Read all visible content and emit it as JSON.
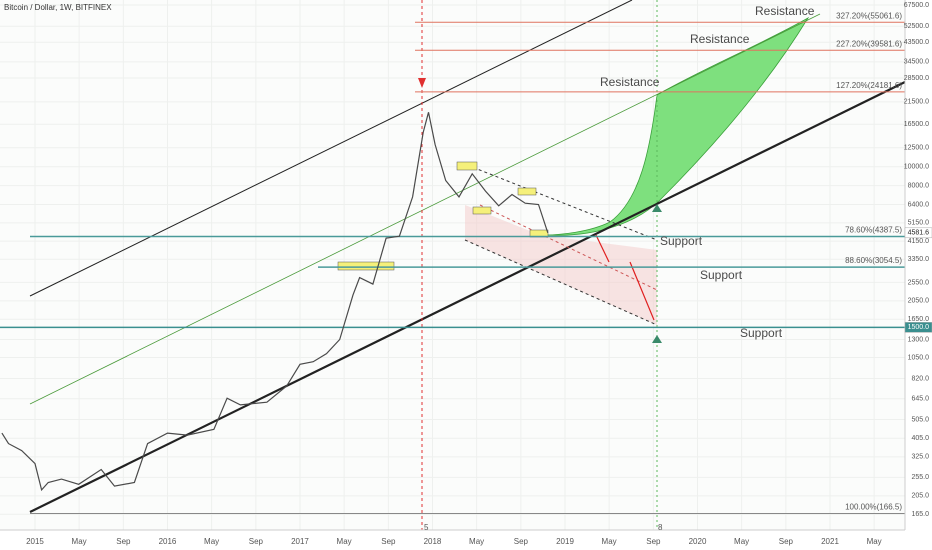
{
  "chart_data": {
    "type": "line",
    "title": "Bitcoin / Dollar, 1W, BITFINEX",
    "log_scale": true,
    "grid": true,
    "color": "#4a4a4a",
    "x": [
      2014.75,
      2014.8,
      2014.9,
      2015.0,
      2015.05,
      2015.1,
      2015.2,
      2015.33,
      2015.5,
      2015.6,
      2015.75,
      2015.85,
      2016.0,
      2016.15,
      2016.35,
      2016.45,
      2016.55,
      2016.75,
      2016.9,
      2017.0,
      2017.1,
      2017.2,
      2017.3,
      2017.4,
      2017.45,
      2017.55,
      2017.65,
      2017.75,
      2017.85,
      2017.93,
      2017.97,
      2018.02,
      2018.1,
      2018.2,
      2018.3,
      2018.4,
      2018.5,
      2018.6,
      2018.7,
      2018.8,
      2018.87
    ],
    "values": [
      430,
      380,
      350,
      300,
      220,
      240,
      250,
      235,
      280,
      230,
      240,
      380,
      430,
      420,
      450,
      650,
      600,
      620,
      750,
      970,
      1000,
      1100,
      1300,
      2200,
      2700,
      2500,
      4300,
      4400,
      7000,
      15000,
      19000,
      13000,
      8500,
      7000,
      9200,
      7500,
      6300,
      7200,
      6500,
      6400,
      4581.6
    ],
    "xlim": [
      2014.736,
      2021.566
    ],
    "xticks": [
      {
        "value": 2015.0,
        "label": "2015"
      },
      {
        "value": 2015.333,
        "label": "May"
      },
      {
        "value": 2015.667,
        "label": "Sep"
      },
      {
        "value": 2016.0,
        "label": "2016"
      },
      {
        "value": 2016.333,
        "label": "May"
      },
      {
        "value": 2016.667,
        "label": "Sep"
      },
      {
        "value": 2017.0,
        "label": "2017"
      },
      {
        "value": 2017.333,
        "label": "May"
      },
      {
        "value": 2017.667,
        "label": "Sep"
      },
      {
        "value": 2018.0,
        "label": "2018"
      },
      {
        "value": 2018.333,
        "label": "May"
      },
      {
        "value": 2018.667,
        "label": "Sep"
      },
      {
        "value": 2019.0,
        "label": "2019"
      },
      {
        "value": 2019.333,
        "label": "May"
      },
      {
        "value": 2019.667,
        "label": "Sep"
      },
      {
        "value": 2020.0,
        "label": "2020"
      },
      {
        "value": 2020.333,
        "label": "May"
      },
      {
        "value": 2020.667,
        "label": "Sep"
      },
      {
        "value": 2021.0,
        "label": "2021"
      },
      {
        "value": 2021.333,
        "label": "May"
      }
    ],
    "ylim": [
      137,
      71600
    ],
    "yticks": [
      {
        "value": 67500,
        "label": "67500.0"
      },
      {
        "value": 52500,
        "label": "52500.0"
      },
      {
        "value": 43500,
        "label": "43500.0"
      },
      {
        "value": 34500,
        "label": "34500.0"
      },
      {
        "value": 28500,
        "label": "28500.0"
      },
      {
        "value": 21500,
        "label": "21500.0"
      },
      {
        "value": 16500,
        "label": "16500.0"
      },
      {
        "value": 12500,
        "label": "12500.0"
      },
      {
        "value": 10000,
        "label": "10000.0"
      },
      {
        "value": 8000,
        "label": "8000.0"
      },
      {
        "value": 6400,
        "label": "6400.0"
      },
      {
        "value": 5150,
        "label": "5150.0"
      },
      {
        "value": 4150,
        "label": "4150.0"
      },
      {
        "value": 3350,
        "label": "3350.0"
      },
      {
        "value": 2550,
        "label": "2550.0"
      },
      {
        "value": 2050,
        "label": "2050.0"
      },
      {
        "value": 1650,
        "label": "1650.0"
      },
      {
        "value": 1300,
        "label": "1300.0"
      },
      {
        "value": 1050,
        "label": "1050.0"
      },
      {
        "value": 820,
        "label": "820.0"
      },
      {
        "value": 645,
        "label": "645.0"
      },
      {
        "value": 505,
        "label": "505.0"
      },
      {
        "value": 405,
        "label": "405.0"
      },
      {
        "value": 325,
        "label": "325.0"
      },
      {
        "value": 255,
        "label": "255.0"
      },
      {
        "value": 205,
        "label": "205.0"
      },
      {
        "value": 165,
        "label": "165.0"
      }
    ],
    "levels": [
      {
        "value": 55061.6,
        "label": "327.20%(55061.6)",
        "color": "#e0735f"
      },
      {
        "value": 39581.6,
        "label": "227.20%(39581.6)",
        "color": "#e0735f"
      },
      {
        "value": 24181.6,
        "label": "127.20%(24181.6)",
        "color": "#e0735f"
      },
      {
        "value": 4387.5,
        "label": "78.60%(4387.5)",
        "color": "#4a9a9a"
      },
      {
        "value": 3054.5,
        "label": "88.60%(3054.5)",
        "color": "#4a9a9a"
      },
      {
        "value": 166.5,
        "label": "100.00%(166.5)",
        "color": "#888888"
      }
    ],
    "price_labels": [
      {
        "value": 4581.6,
        "label": "4581.6",
        "color": "#ffffff"
      },
      {
        "value": 1500.0,
        "label": "1500.0",
        "color": "#3a8f8f"
      }
    ],
    "annotations": [
      "Resistance",
      "Resistance",
      "Resistance",
      "Support",
      "Support",
      "Support"
    ],
    "markers": [
      "5",
      "8"
    ]
  }
}
